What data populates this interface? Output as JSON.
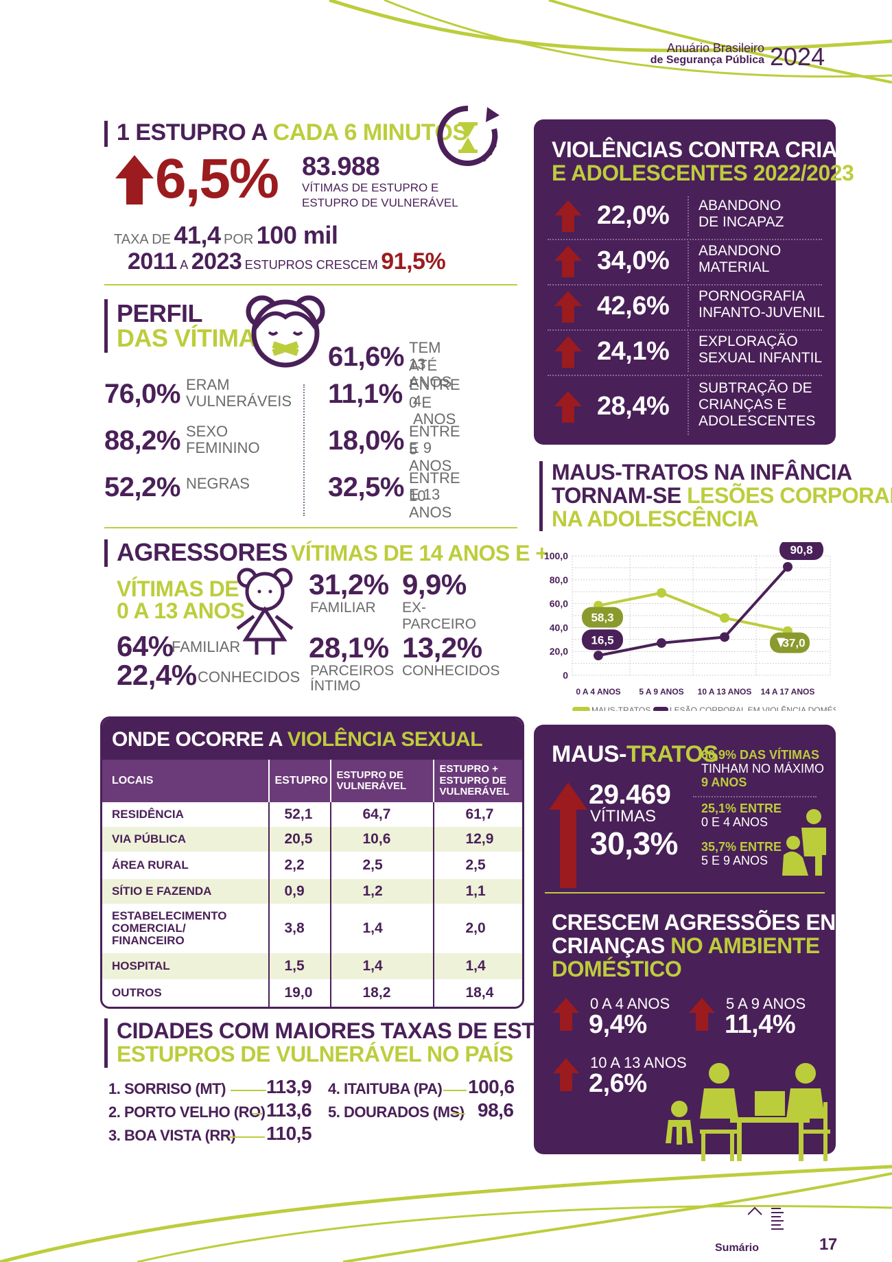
{
  "header": {
    "line1": "Anuário Brasileiro",
    "line2": "de Segurança Pública",
    "year": "2024"
  },
  "estupro": {
    "title_a": "1 ESTUPRO A ",
    "title_b": "CADA 6 MINUTOS",
    "pct": "6,5%",
    "count": "83.988",
    "count_desc1": "VÍTIMAS DE ESTUPRO E",
    "count_desc2": "ESTUPRO DE VULNERÁVEL",
    "taxa_pre": "TAXA DE",
    "taxa_val": "41,4",
    "taxa_mid": "POR",
    "taxa_post": "100 mil",
    "y1": "2011",
    "a": "A",
    "y2": "2023",
    "cresc": "ESTUPROS CRESCEM",
    "cresc_val": "91,5%"
  },
  "perfil": {
    "title1": "PERFIL",
    "title2": "DAS VÍTIMAS",
    "left": [
      {
        "value": "76,0%",
        "l1": "ERAM",
        "l2": "VULNERÁVEIS"
      },
      {
        "value": "88,2%",
        "l1": "SEXO",
        "l2": "FEMININO"
      },
      {
        "value": "52,2%",
        "l1": "NEGRAS",
        "l2": ""
      }
    ],
    "right": [
      {
        "value": "61,6%",
        "l1": "TEM ATÉ",
        "l2": "13 ANOS"
      },
      {
        "value": "11,1%",
        "l1": "ENTRE 0 E",
        "l2": "4 ANOS"
      },
      {
        "value": "18,0%",
        "l1": "ENTRE 5",
        "l2": "E 9 ANOS"
      },
      {
        "value": "32,5%",
        "l1": "ENTRE 10",
        "l2": "E 13 ANOS"
      }
    ]
  },
  "agressores": {
    "title": "AGRESSORES",
    "v14_title": "VÍTIMAS DE 14 ANOS E +",
    "v013_title1": "VÍTIMAS DE",
    "v013_title2": "0 A 13 ANOS",
    "v013": [
      {
        "value": "64%",
        "label": "FAMILIAR"
      },
      {
        "value": "22,4%",
        "label": "CONHECIDOS"
      }
    ],
    "v14": [
      {
        "value": "31,2%",
        "l1": "FAMILIAR",
        "l2": ""
      },
      {
        "value": "9,9%",
        "l1": "EX-PARCEIRO",
        "l2": ""
      },
      {
        "value": "28,1%",
        "l1": "PARCEIROS",
        "l2": "ÍNTIMO"
      },
      {
        "value": "13,2%",
        "l1": "CONHECIDOS",
        "l2": ""
      }
    ]
  },
  "local": {
    "title_a": "ONDE OCORRE A ",
    "title_b": "VIOLÊNCIA SEXUAL",
    "headers": [
      "LOCAIS",
      "ESTUPRO",
      "ESTUPRO DE VULNERÁVEL",
      "ESTUPRO + ESTUPRO DE VULNERÁVEL"
    ],
    "rows": [
      [
        "RESIDÊNCIA",
        "52,1",
        "64,7",
        "61,7"
      ],
      [
        "VIA PÚBLICA",
        "20,5",
        "10,6",
        "12,9"
      ],
      [
        "ÁREA RURAL",
        "2,2",
        "2,5",
        "2,5"
      ],
      [
        "SÍTIO E FAZENDA",
        "0,9",
        "1,2",
        "1,1"
      ],
      [
        "ESTABELECIMENTO COMERCIAL/ FINANCEIRO",
        "3,8",
        "1,4",
        "2,0"
      ],
      [
        "HOSPITAL",
        "1,5",
        "1,4",
        "1,4"
      ],
      [
        "OUTROS",
        "19,0",
        "18,2",
        "18,4"
      ]
    ]
  },
  "cidades": {
    "title1": "CIDADES COM MAIORES TAXAS DE ESTUPROS/",
    "title2": "ESTUPROS DE VULNERÁVEL NO PAÍS",
    "col1": [
      {
        "name": "1. SORRISO (MT)",
        "value": "113,9"
      },
      {
        "name": "2. PORTO VELHO (RO)",
        "value": "113,6"
      },
      {
        "name": "3. BOA VISTA (RR)",
        "value": "110,5"
      }
    ],
    "col2": [
      {
        "name": "4. ITAITUBA (PA)",
        "value": "100,6"
      },
      {
        "name": "5. DOURADOS (MS)",
        "value": "98,6"
      }
    ]
  },
  "violencias": {
    "title1": "VIOLÊNCIAS CONTRA CRIANÇAS",
    "title2": "E ADOLESCENTES 2022/2023",
    "items": [
      {
        "value": "22,0%",
        "lines": [
          "ABANDONO",
          "DE INCAPAZ"
        ]
      },
      {
        "value": "34,0%",
        "lines": [
          "ABANDONO",
          "MATERIAL"
        ]
      },
      {
        "value": "42,6%",
        "lines": [
          "PORNOGRAFIA",
          "INFANTO-JUVENIL"
        ]
      },
      {
        "value": "24,1%",
        "lines": [
          "EXPLORAÇÃO",
          "SEXUAL INFANTIL"
        ]
      },
      {
        "value": "28,4%",
        "lines": [
          "SUBTRAÇÃO DE",
          "CRIANÇAS E",
          "ADOLESCENTES"
        ]
      }
    ]
  },
  "maus_chart": {
    "title1": "MAUS-TRATOS NA INFÂNCIA",
    "title2a": "TORNAM-SE ",
    "title2b": "LESÕES CORPORAIS",
    "title3": "NA ADOLESCÊNCIA"
  },
  "chart_data": {
    "type": "line",
    "categories": [
      "0 A 4 ANOS",
      "5 A 9 ANOS",
      "10 A 13 ANOS",
      "14 A 17 ANOS"
    ],
    "series": [
      {
        "name": "MAUS-TRATOS",
        "values": [
          58.3,
          69.0,
          48.0,
          37.0
        ],
        "color": "#bccd3c"
      },
      {
        "name": "LESÃO CORPORAL EM VIOLÊNCIA DOMÉSTICA",
        "values": [
          16.5,
          27.0,
          32.0,
          90.8
        ],
        "color": "#4a2058"
      }
    ],
    "yticks": [
      "100,0",
      "80,0",
      "60,0",
      "40,0",
      "20,0",
      "0"
    ],
    "ylim": [
      0,
      100
    ],
    "labels": {
      "mt_first": "58,3",
      "mt_last": "37,0",
      "lc_first": "16,5",
      "lc_last": "90,8"
    },
    "grid": true,
    "legend_position": "bottom"
  },
  "maus": {
    "title_a": "MAUS-",
    "title_b": "TRATOS",
    "count": "29.469",
    "count_label": "VÍTIMAS",
    "pct": "30,3%",
    "s1_a": "60,9% DAS VÍTIMAS",
    "s1_b": "TINHAM NO MÁXIMO",
    "s1_c": "9 ANOS",
    "s2_a": "25,1% ENTRE",
    "s2_b": "0 E 4 ANOS",
    "s3_a": "35,7% ENTRE",
    "s3_b": "5 E 9 ANOS"
  },
  "crescem": {
    "title1": "CRESCEM AGRESSÕES ENTRE",
    "title2a": "CRIANÇAS ",
    "title2b": "NO AMBIENTE",
    "title3": "DOMÉSTICO",
    "items": [
      {
        "label": "0 A 4 ANOS",
        "value": "9,4%"
      },
      {
        "label": "5 A 9 ANOS",
        "value": "11,4%"
      },
      {
        "label": "10 A 13 ANOS",
        "value": "2,6%"
      }
    ]
  },
  "footer": {
    "sumario": "Sumário",
    "page": "17"
  }
}
